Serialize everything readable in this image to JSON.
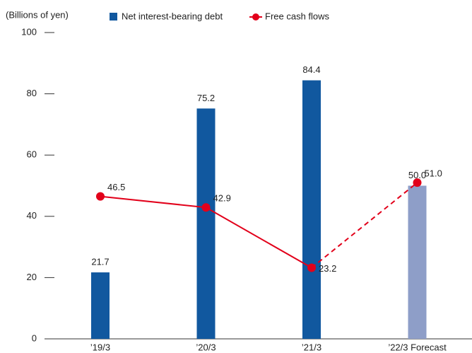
{
  "chart_data": {
    "type": "bar",
    "y_label": "(Billions of yen)",
    "categories": [
      "’19/3",
      "’20/3",
      "’21/3",
      "’22/3 Forecast"
    ],
    "series": [
      {
        "name": "Net interest-bearing debt",
        "type": "bar",
        "color": "#11589f",
        "colors": [
          "#11589f",
          "#11589f",
          "#11589f",
          "#8e9ec8"
        ],
        "values": [
          21.7,
          75.2,
          84.4,
          50.0
        ],
        "value_labels": [
          "21.7",
          "75.2",
          "84.4",
          "50.0"
        ]
      },
      {
        "name": "Free cash flows",
        "type": "line",
        "color": "#e2001a",
        "values": [
          46.5,
          42.9,
          23.2,
          51.0
        ],
        "value_labels": [
          "46.5",
          "42.9",
          "23.2",
          "51.0"
        ],
        "dashed_segments": [
          2
        ]
      }
    ],
    "ylim": [
      0,
      100
    ],
    "yticks": [
      0,
      20,
      40,
      60,
      80,
      100
    ]
  }
}
